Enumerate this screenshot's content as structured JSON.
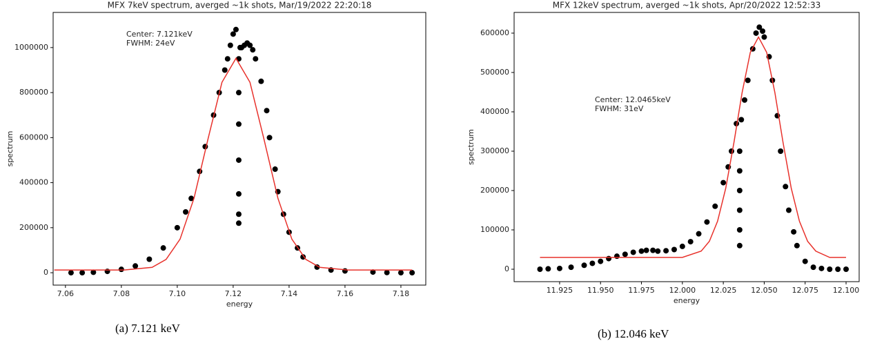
{
  "chart_data": [
    {
      "type": "scatter",
      "title": "MFX 7keV spectrum, averged ~1k shots, Mar/19/2022 22:20:18",
      "x_label": "energy",
      "y_label": "spectrum",
      "annotation": [
        "Center: 7.121keV",
        "FWHM: 24eV"
      ],
      "caption": "(a) 7.121 keV",
      "xlim": [
        7.0556,
        7.1889
      ],
      "ylim": [
        -55000,
        1156000
      ],
      "xticks": [
        7.06,
        7.08,
        {
          "value": 7.1,
          "label": "7.10"
        },
        7.12,
        7.14,
        7.16,
        7.18
      ],
      "yticks": [
        0,
        200000,
        400000,
        600000,
        800000,
        1000000
      ],
      "series": [
        {
          "style": "markers",
          "color": "#000000",
          "x": [
            7.062,
            7.066,
            7.07,
            7.075,
            7.08,
            7.085,
            7.09,
            7.095,
            7.1,
            7.103,
            7.105,
            7.108,
            7.11,
            7.113,
            7.115,
            7.117,
            7.118,
            7.119,
            7.12,
            7.121,
            7.122,
            7.122,
            7.122,
            7.122,
            7.122,
            7.122,
            7.122,
            7.1225,
            7.123,
            7.124,
            7.125,
            7.126,
            7.127,
            7.128,
            7.13,
            7.132,
            7.133,
            7.135,
            7.136,
            7.138,
            7.14,
            7.143,
            7.145,
            7.15,
            7.155,
            7.16,
            7.17,
            7.175,
            7.18,
            7.184
          ],
          "values": [
            0,
            0,
            2000,
            6000,
            15000,
            30000,
            60000,
            110000,
            200000,
            270000,
            330000,
            450000,
            560000,
            700000,
            800000,
            900000,
            950000,
            1010000,
            1060000,
            1080000,
            220000,
            260000,
            350000,
            500000,
            660000,
            800000,
            950000,
            1000000,
            1000000,
            1010000,
            1020000,
            1010000,
            990000,
            950000,
            850000,
            720000,
            600000,
            460000,
            360000,
            260000,
            180000,
            110000,
            70000,
            25000,
            12000,
            8000,
            3000,
            1000,
            0,
            0
          ]
        },
        {
          "style": "line",
          "color": "#e8302a",
          "x": [
            7.056,
            7.081,
            7.091,
            7.096,
            7.101,
            7.106,
            7.111,
            7.116,
            7.121,
            7.126,
            7.131,
            7.136,
            7.141,
            7.146,
            7.151,
            7.161,
            7.184
          ],
          "values": [
            12000,
            12000,
            24000,
            59000,
            149000,
            331000,
            594000,
            846000,
            952000,
            846000,
            594000,
            331000,
            149000,
            59000,
            24000,
            12000,
            12000
          ]
        }
      ]
    },
    {
      "type": "scatter",
      "title": "MFX 12keV spectrum, averged ~1k shots,  Apr/20/2022 12:52:33",
      "x_label": "energy",
      "y_label": "spectrum",
      "annotation": [
        "Center: 12.0465keV",
        "FWHM: 31eV"
      ],
      "caption": "(b) 12.046 keV",
      "xlim": [
        11.8972,
        12.108
      ],
      "ylim": [
        -31600,
        652600
      ],
      "xticks": [
        11.925,
        {
          "value": 11.95,
          "label": "11.950"
        },
        11.975,
        {
          "value": 12,
          "label": "12.000"
        },
        12.025,
        {
          "value": 12.05,
          "label": "12.050"
        },
        12.075,
        {
          "value": 12.1,
          "label": "12.100"
        }
      ],
      "yticks": [
        0,
        100000,
        200000,
        300000,
        400000,
        500000,
        600000
      ],
      "series": [
        {
          "style": "markers",
          "color": "#000000",
          "x": [
            11.913,
            11.918,
            11.925,
            11.932,
            11.94,
            11.945,
            11.95,
            11.955,
            11.96,
            11.965,
            11.97,
            11.975,
            11.978,
            11.982,
            11.985,
            11.99,
            11.995,
            12.0,
            12.005,
            12.01,
            12.015,
            12.02,
            12.025,
            12.028,
            12.03,
            12.033,
            12.035,
            12.035,
            12.035,
            12.035,
            12.035,
            12.035,
            12.036,
            12.038,
            12.04,
            12.043,
            12.045,
            12.047,
            12.049,
            12.05,
            12.053,
            12.055,
            12.058,
            12.06,
            12.063,
            12.065,
            12.068,
            12.07,
            12.075,
            12.08,
            12.085,
            12.09,
            12.095,
            12.1
          ],
          "values": [
            0,
            1000,
            2000,
            5000,
            10000,
            15000,
            20000,
            27000,
            33000,
            38000,
            43000,
            46000,
            48000,
            48000,
            46000,
            47000,
            50000,
            58000,
            70000,
            90000,
            120000,
            160000,
            220000,
            260000,
            300000,
            370000,
            60000,
            100000,
            150000,
            200000,
            250000,
            300000,
            380000,
            430000,
            480000,
            560000,
            600000,
            615000,
            605000,
            590000,
            540000,
            480000,
            390000,
            300000,
            210000,
            150000,
            95000,
            60000,
            20000,
            5000,
            2000,
            0,
            0,
            0
          ]
        },
        {
          "style": "line",
          "color": "#e8302a",
          "x": [
            11.913,
            12.0,
            12.0115,
            12.0165,
            12.0215,
            12.0265,
            12.0315,
            12.0365,
            12.0415,
            12.0465,
            12.0515,
            12.0565,
            12.0615,
            12.0665,
            12.0715,
            12.0765,
            12.0815,
            12.09,
            12.1
          ],
          "values": [
            30000,
            30000,
            46000,
            71000,
            122000,
            206000,
            322000,
            449000,
            551000,
            590000,
            551000,
            449000,
            322000,
            206000,
            122000,
            71000,
            46000,
            30000,
            30000
          ]
        }
      ]
    }
  ]
}
